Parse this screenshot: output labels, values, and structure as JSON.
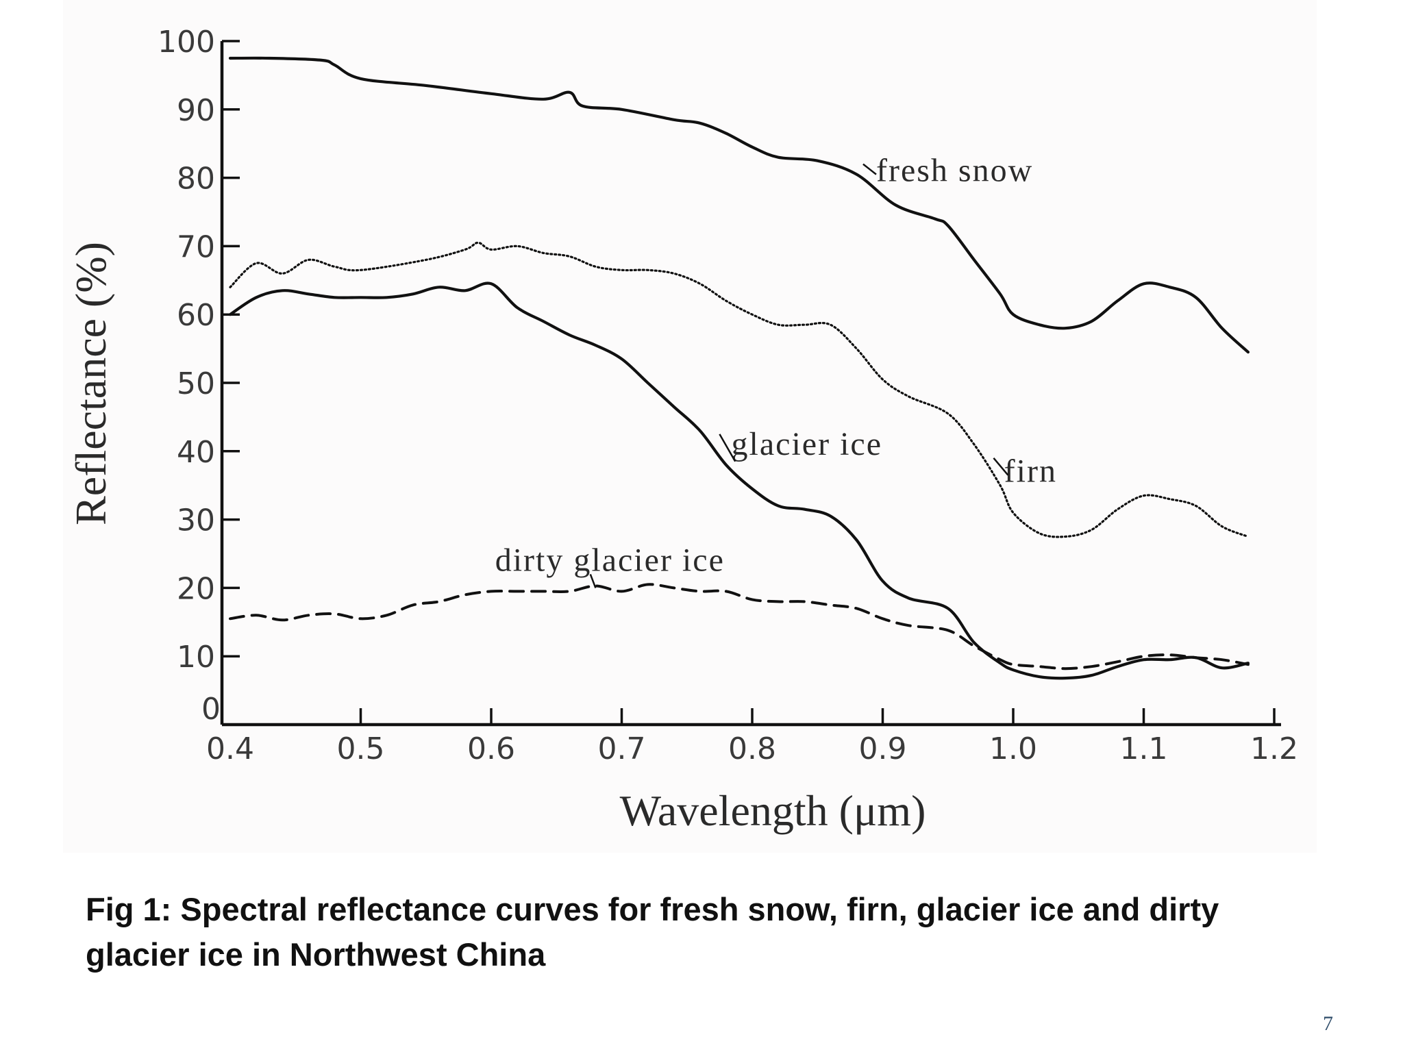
{
  "caption": "Fig 1: Spectral reflectance curves for fresh snow, firn, glacier ice and dirty glacier ice in Northwest China",
  "page_number": "7",
  "chart_data": {
    "type": "line",
    "title": "",
    "xlabel": "Wavelength (μm)",
    "ylabel": "Reflectance (%)",
    "xlim": [
      0.4,
      1.2
    ],
    "ylim": [
      0,
      100
    ],
    "x_ticks": [
      "0.4",
      "0.5",
      "0.6",
      "0.7",
      "0.8",
      "0.9",
      "1.0",
      "1.1",
      "1.2"
    ],
    "y_ticks": [
      "0",
      "10",
      "20",
      "30",
      "40",
      "50",
      "60",
      "70",
      "80",
      "90",
      "100"
    ],
    "grid": false,
    "legend": "none",
    "series": [
      {
        "name": "fresh snow",
        "style": "solid",
        "x": [
          0.4,
          0.43,
          0.47,
          0.48,
          0.5,
          0.55,
          0.6,
          0.64,
          0.66,
          0.67,
          0.7,
          0.74,
          0.76,
          0.78,
          0.8,
          0.82,
          0.85,
          0.88,
          0.91,
          0.94,
          0.95,
          0.97,
          0.99,
          1.0,
          1.02,
          1.04,
          1.06,
          1.08,
          1.1,
          1.12,
          1.14,
          1.16,
          1.18
        ],
        "y": [
          97.5,
          97.5,
          97.2,
          96.5,
          94.5,
          93.5,
          92.3,
          91.5,
          92.5,
          90.5,
          90,
          88.5,
          88,
          86.5,
          84.5,
          83,
          82.5,
          80.5,
          76,
          74,
          73,
          68,
          63,
          60,
          58.5,
          58,
          59,
          62,
          64.5,
          64,
          62.5,
          58,
          54.5
        ]
      },
      {
        "name": "firn",
        "style": "dotted",
        "x": [
          0.4,
          0.42,
          0.44,
          0.46,
          0.48,
          0.5,
          0.55,
          0.58,
          0.59,
          0.6,
          0.62,
          0.64,
          0.66,
          0.68,
          0.7,
          0.72,
          0.74,
          0.76,
          0.78,
          0.8,
          0.82,
          0.84,
          0.86,
          0.88,
          0.9,
          0.92,
          0.95,
          0.97,
          0.99,
          1.0,
          1.02,
          1.04,
          1.06,
          1.08,
          1.1,
          1.12,
          1.14,
          1.16,
          1.18
        ],
        "y": [
          64,
          67.5,
          66,
          68,
          67,
          66.5,
          68,
          69.5,
          70.5,
          69.5,
          70,
          69,
          68.5,
          67,
          66.5,
          66.5,
          66,
          64.5,
          62,
          60,
          58.5,
          58.5,
          58.5,
          55,
          50.5,
          48,
          45.5,
          41,
          35,
          31,
          28,
          27.5,
          28.5,
          31.5,
          33.5,
          33,
          32,
          29,
          27.5
        ]
      },
      {
        "name": "glacier ice",
        "style": "solid",
        "x": [
          0.4,
          0.42,
          0.44,
          0.46,
          0.48,
          0.5,
          0.52,
          0.54,
          0.56,
          0.58,
          0.6,
          0.62,
          0.64,
          0.66,
          0.68,
          0.7,
          0.72,
          0.74,
          0.76,
          0.78,
          0.8,
          0.82,
          0.84,
          0.86,
          0.88,
          0.9,
          0.92,
          0.95,
          0.97,
          0.99,
          1.0,
          1.02,
          1.04,
          1.06,
          1.08,
          1.1,
          1.12,
          1.14,
          1.16,
          1.18
        ],
        "y": [
          60,
          62.5,
          63.5,
          63,
          62.5,
          62.5,
          62.5,
          63,
          64,
          63.5,
          64.5,
          61,
          59,
          57,
          55.5,
          53.5,
          50,
          46.5,
          43,
          38,
          34.5,
          32,
          31.5,
          30.5,
          27,
          21,
          18.5,
          17,
          12,
          9,
          8,
          7,
          6.8,
          7.2,
          8.5,
          9.5,
          9.5,
          9.8,
          8.3,
          9
        ]
      },
      {
        "name": "dirty glacier ice",
        "style": "dashed",
        "x": [
          0.4,
          0.42,
          0.44,
          0.46,
          0.48,
          0.5,
          0.52,
          0.54,
          0.56,
          0.58,
          0.6,
          0.62,
          0.64,
          0.66,
          0.68,
          0.7,
          0.72,
          0.74,
          0.76,
          0.78,
          0.8,
          0.82,
          0.84,
          0.86,
          0.88,
          0.9,
          0.92,
          0.95,
          0.97,
          0.99,
          1.0,
          1.02,
          1.04,
          1.06,
          1.08,
          1.1,
          1.12,
          1.14,
          1.16,
          1.18
        ],
        "y": [
          15.5,
          16,
          15.3,
          16,
          16.2,
          15.5,
          16,
          17.5,
          18,
          19,
          19.5,
          19.5,
          19.5,
          19.5,
          20.3,
          19.5,
          20.5,
          20,
          19.5,
          19.5,
          18.3,
          18,
          18,
          17.5,
          17,
          15.5,
          14.5,
          13.8,
          11.5,
          9.5,
          8.8,
          8.5,
          8.2,
          8.5,
          9.2,
          10,
          10.2,
          9.8,
          9.5,
          8.8
        ]
      }
    ],
    "annotations": [
      {
        "text": "fresh snow",
        "series": "fresh snow"
      },
      {
        "text": "firn",
        "series": "firn"
      },
      {
        "text": "glacier ice",
        "series": "glacier ice"
      },
      {
        "text": "dirty glacier ice",
        "series": "dirty glacier ice"
      }
    ]
  }
}
